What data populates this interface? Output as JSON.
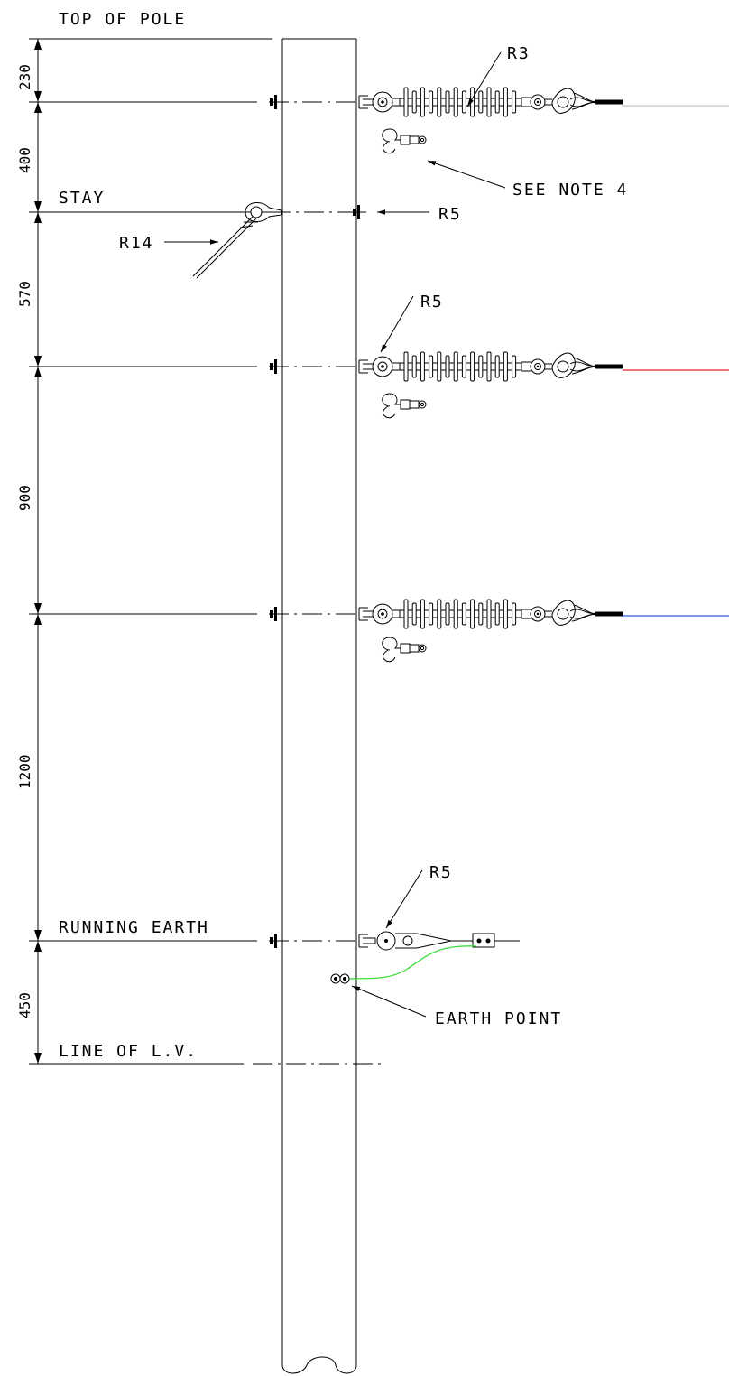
{
  "labels": {
    "top_of_pole": "TOP OF POLE",
    "stay": "STAY",
    "running_earth": "RUNNING EARTH",
    "line_of_lv": "LINE OF L.V.",
    "see_note": "SEE NOTE 4",
    "earth_point": "EARTH POINT",
    "r3": "R3",
    "r5_stay": "R5",
    "r5_upper": "R5",
    "r5_earth": "R5",
    "r14": "R14"
  },
  "dimensions": {
    "d230": "230",
    "d400": "400",
    "d570": "570",
    "d900": "900",
    "d1200": "1200",
    "d450": "450"
  },
  "conductor_colors": {
    "top": "#c8c8c8",
    "middle": "#e8232a",
    "lower": "#2a5bd7",
    "earth_tail": "#3fdc3f"
  }
}
